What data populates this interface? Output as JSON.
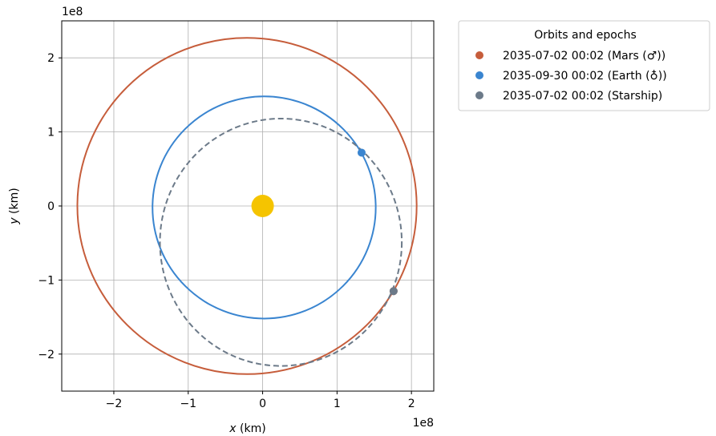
{
  "chart_data": {
    "type": "scatter",
    "xlabel_var": "x",
    "xlabel_unit": " (km)",
    "ylabel_var": "y",
    "ylabel_unit": " (km)",
    "x_offset_label": "1e8",
    "y_offset_label": "1e8",
    "xlim": [
      -2.7,
      2.3
    ],
    "ylim": [
      -2.5,
      2.5
    ],
    "xticks": [
      -2,
      -1,
      0,
      1,
      2
    ],
    "yticks": [
      -2,
      -1,
      0,
      1,
      2
    ],
    "tick_labels": {
      "-2": "−2",
      "-1": "−1",
      "0": "0",
      "1": "1",
      "2": "2"
    },
    "grid": true,
    "legend": {
      "title": "Orbits and epochs",
      "placement": "outside-upper-right",
      "entries": [
        {
          "label": "2035-07-02 00:02 (Mars (♂))",
          "color": "#c65d3b"
        },
        {
          "label": "2035-09-30 00:02 (Earth (♁))",
          "color": "#3a85d0"
        },
        {
          "label": "2035-07-02 00:02 (Starship)",
          "color": "#6c7a89"
        }
      ]
    },
    "sun": {
      "x": 0,
      "y": 0,
      "color": "#f5c400"
    },
    "orbits": [
      {
        "name": "Mars",
        "color": "#c65d3b",
        "dashed": false,
        "xmin": -2.49,
        "xmax": 2.07,
        "ymin": -2.27,
        "ymax": 2.27
      },
      {
        "name": "Earth",
        "color": "#3a85d0",
        "dashed": false,
        "xmin": -1.48,
        "xmax": 1.52,
        "ymin": -1.52,
        "ymax": 1.48
      },
      {
        "name": "Starship",
        "color": "#6c7a89",
        "dashed": true,
        "xmin": -1.38,
        "xmax": 1.87,
        "ymin": -2.16,
        "ymax": 1.18
      }
    ],
    "markers": [
      {
        "name": "Earth",
        "x": 1.33,
        "y": 0.72,
        "color": "#3a85d0"
      },
      {
        "name": "Mars",
        "x": 1.76,
        "y": -1.15,
        "color": "#c65d3b"
      },
      {
        "name": "Starship",
        "x": 1.76,
        "y": -1.15,
        "color": "#6c7a89"
      }
    ]
  }
}
